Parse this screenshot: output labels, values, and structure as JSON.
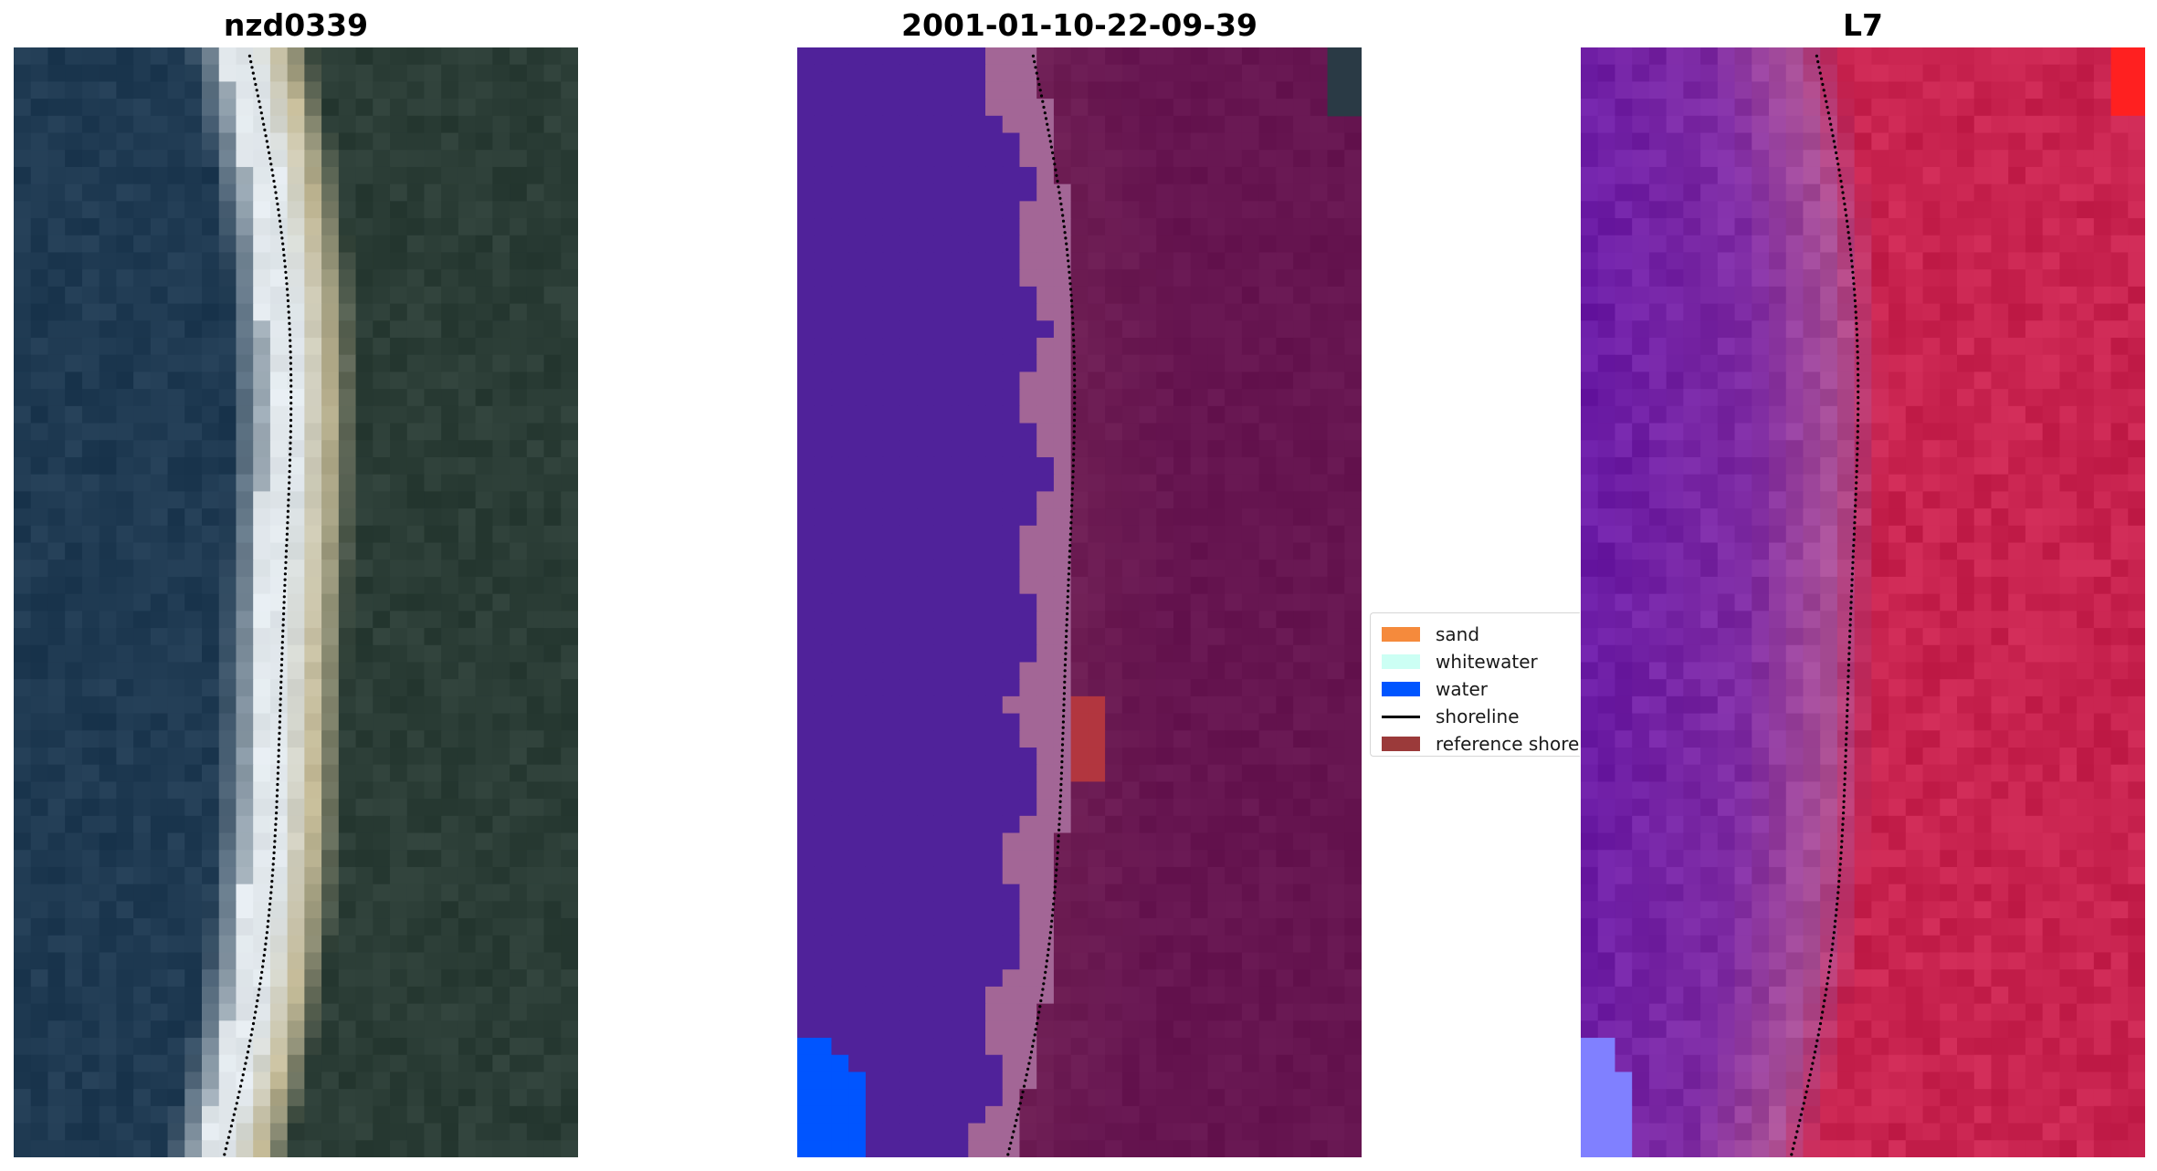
{
  "panels": [
    {
      "title": "nzd0339"
    },
    {
      "title": "2001-01-10-22-09-39"
    },
    {
      "title": "L7"
    }
  ],
  "legend": {
    "items": [
      {
        "label": "sand",
        "kind": "patch",
        "color": "#f58a3c"
      },
      {
        "label": "whitewater",
        "kind": "patch",
        "color": "#ccfff4"
      },
      {
        "label": "water",
        "kind": "patch",
        "color": "#0055ff"
      },
      {
        "label": "shoreline",
        "kind": "line",
        "color": "#000000"
      },
      {
        "label": "reference shoreline",
        "kind": "patch",
        "color": "#9b3a3a"
      }
    ]
  },
  "colors": {
    "rgb_water": "#1f3a52",
    "rgb_land": "#2b3d36",
    "rgb_beach": "#dde4e8",
    "class_water": "#50229a",
    "class_beach": "#a36696",
    "class_land": "#661550",
    "class_ref": "#b2363f",
    "class_bright_water": "#0055ff",
    "index_water": "#7e2ba3",
    "index_land": "#c8234f",
    "index_corner": "#ff2020",
    "index_bright": "#8080ff"
  }
}
